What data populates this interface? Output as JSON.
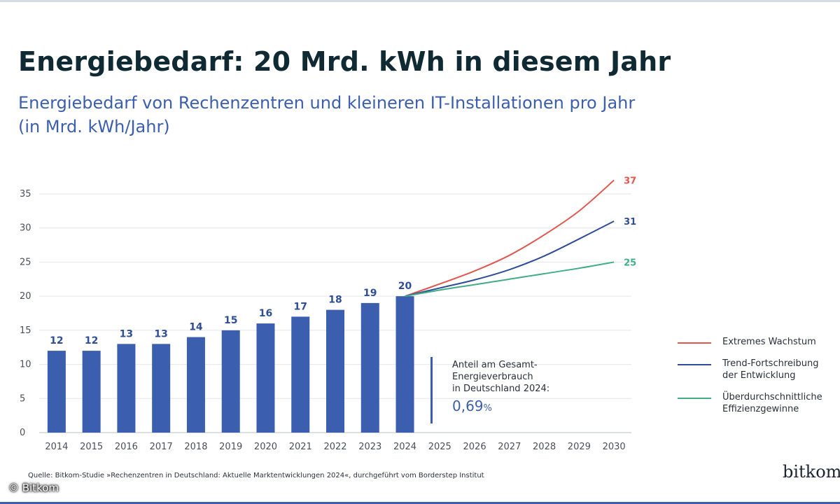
{
  "header": {
    "title": "Energiebedarf: 20 Mrd. kWh in diesem Jahr",
    "subtitle": "Energiebedarf von Rechenzentren und kleineren IT-Installationen pro Jahr (in Mrd. kWh/Jahr)"
  },
  "chart_data": {
    "type": "bar",
    "title": "Energiebedarf: 20 Mrd. kWh in diesem Jahr",
    "subtitle": "Energiebedarf von Rechenzentren und kleineren IT-Installationen pro Jahr (in Mrd. kWh/Jahr)",
    "xlabel": "",
    "ylabel": "Mrd. kWh/Jahr",
    "ylim": [
      0,
      35
    ],
    "yticks": [
      0,
      5,
      10,
      15,
      20,
      25,
      30,
      35
    ],
    "grid": true,
    "categories": [
      "2014",
      "2015",
      "2016",
      "2017",
      "2018",
      "2019",
      "2020",
      "2021",
      "2022",
      "2023",
      "2024",
      "2025",
      "2026",
      "2027",
      "2028",
      "2029",
      "2030"
    ],
    "bars": {
      "name": "Energiebedarf",
      "color": "#3b5fae",
      "categories": [
        "2014",
        "2015",
        "2016",
        "2017",
        "2018",
        "2019",
        "2020",
        "2021",
        "2022",
        "2023",
        "2024"
      ],
      "values": [
        12,
        12,
        13,
        13,
        14,
        15,
        16,
        17,
        18,
        19,
        20
      ]
    },
    "series": [
      {
        "name": "Extremes Wachstum",
        "type": "line",
        "color": "#e1574f",
        "x": [
          "2024",
          "2025",
          "2026",
          "2027",
          "2028",
          "2029",
          "2030"
        ],
        "values": [
          20,
          21.8,
          23.7,
          26,
          29,
          32.5,
          37
        ],
        "end_label": "37"
      },
      {
        "name": "Trend-Fortschreibung der Entwicklung",
        "type": "line",
        "color": "#2e4e99",
        "x": [
          "2024",
          "2025",
          "2026",
          "2027",
          "2028",
          "2029",
          "2030"
        ],
        "values": [
          20,
          21.2,
          22.4,
          23.9,
          25.9,
          28.4,
          31
        ],
        "end_label": "31"
      },
      {
        "name": "Überdurchschnittliche Effizienzgewinne",
        "type": "line",
        "color": "#3fae84",
        "x": [
          "2024",
          "2025",
          "2026",
          "2027",
          "2028",
          "2029",
          "2030"
        ],
        "values": [
          20,
          20.9,
          21.7,
          22.5,
          23.3,
          24.1,
          25
        ],
        "end_label": "25"
      }
    ],
    "annotation": {
      "text_lines": [
        "Anteil am Gesamt-",
        "Energieverbrauch",
        "in Deutschland 2024:"
      ],
      "value": "0,69",
      "unit": "%"
    },
    "legend": {
      "placement": "right",
      "items": [
        {
          "lines": [
            "Extremes Wachstum"
          ],
          "color": "#e1574f"
        },
        {
          "lines": [
            "Trend-Fortschreibung",
            "der Entwicklung"
          ],
          "color": "#2e4e99"
        },
        {
          "lines": [
            "Überdurchschnittliche",
            "Effizienzgewinne"
          ],
          "color": "#3fae84"
        }
      ]
    }
  },
  "footer": {
    "source": "Quelle: Bitkom-Studie »Rechenzentren in Deutschland: Aktuelle Marktentwicklungen 2024«, durchgeführt vom Borderstep Institut",
    "copyright": "© Bitkom",
    "logo_text": "bitkom"
  },
  "colors": {
    "bar": "#3b5fae",
    "title": "#0f2a33",
    "subtitle": "#3b5fae",
    "grid": "#e3e6ec"
  }
}
